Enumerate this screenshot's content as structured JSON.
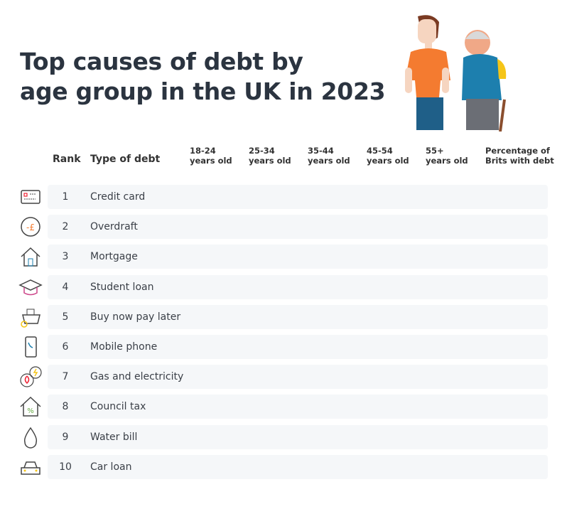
{
  "title_line1": "Top causes of debt by",
  "title_line2": "age group in the UK in 2023",
  "headers": {
    "rank": "Rank",
    "type": "Type of debt",
    "c1a": "18-24",
    "c1b": "years old",
    "c2a": "25-34",
    "c2b": "years old",
    "c3a": "35-44",
    "c3b": "years old",
    "c4a": "45-54",
    "c4b": "years old",
    "c5a": "55+",
    "c5b": "years old",
    "c6a": "Percentage of",
    "c6b": "Brits with debt"
  },
  "rows": [
    {
      "rank": "1",
      "type": "Credit card",
      "icon": "credit-card-icon"
    },
    {
      "rank": "2",
      "type": "Overdraft",
      "icon": "pound-minus-icon"
    },
    {
      "rank": "3",
      "type": "Mortgage",
      "icon": "house-icon"
    },
    {
      "rank": "4",
      "type": "Student loan",
      "icon": "graduation-cap-icon"
    },
    {
      "rank": "5",
      "type": "Buy now pay later",
      "icon": "basket-clock-icon"
    },
    {
      "rank": "6",
      "type": "Mobile phone",
      "icon": "mobile-phone-icon"
    },
    {
      "rank": "7",
      "type": "Gas and electricity",
      "icon": "flame-bolt-icon"
    },
    {
      "rank": "8",
      "type": "Council tax",
      "icon": "house-percent-icon"
    },
    {
      "rank": "9",
      "type": "Water bill",
      "icon": "water-drop-icon"
    },
    {
      "rank": "10",
      "type": "Car loan",
      "icon": "car-icon"
    }
  ],
  "colors": {
    "title": "#2b3440",
    "row_bg": "#f5f7f9",
    "accent_orange": "#f47b30",
    "accent_blue": "#1d7fae"
  }
}
